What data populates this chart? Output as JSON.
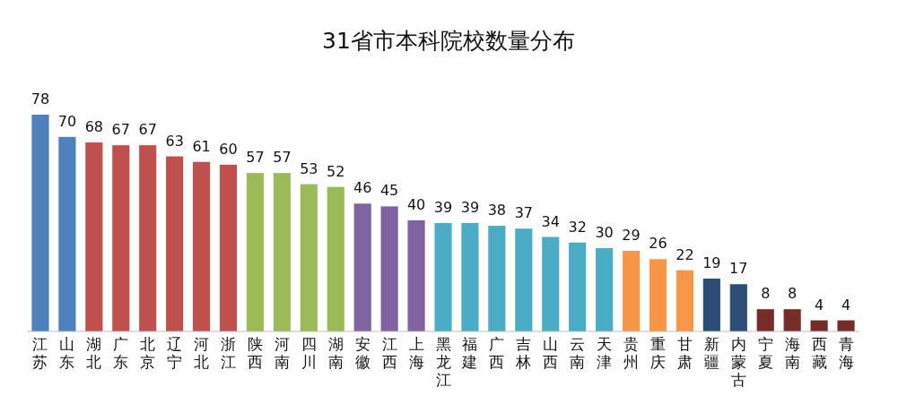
{
  "chart_data": {
    "type": "bar",
    "title": "31省市本科院校数量分布",
    "categories": [
      "江苏",
      "山东",
      "湖北",
      "广东",
      "北京",
      "辽宁",
      "河北",
      "浙江",
      "陕西",
      "河南",
      "四川",
      "湖南",
      "安徽",
      "江西",
      "上海",
      "黑龙江",
      "福建",
      "广西",
      "吉林",
      "山西",
      "云南",
      "天津",
      "贵州",
      "重庆",
      "甘肃",
      "新疆",
      "内蒙古",
      "宁夏",
      "海南",
      "西藏",
      "青海"
    ],
    "values": [
      78,
      70,
      68,
      67,
      67,
      63,
      61,
      60,
      57,
      57,
      53,
      52,
      46,
      45,
      40,
      39,
      39,
      38,
      37,
      34,
      32,
      30,
      29,
      26,
      22,
      19,
      17,
      8,
      8,
      4,
      4
    ],
    "colors": [
      "#4f81bd",
      "#4f81bd",
      "#c0504d",
      "#c0504d",
      "#c0504d",
      "#c0504d",
      "#c0504d",
      "#c0504d",
      "#9bbb59",
      "#9bbb59",
      "#9bbb59",
      "#9bbb59",
      "#8064a2",
      "#8064a2",
      "#8064a2",
      "#4bacc6",
      "#4bacc6",
      "#4bacc6",
      "#4bacc6",
      "#4bacc6",
      "#4bacc6",
      "#4bacc6",
      "#f79646",
      "#f79646",
      "#f79646",
      "#2c4d75",
      "#2c4d75",
      "#772c2a",
      "#772c2a",
      "#772c2a",
      "#772c2a"
    ],
    "data_labels": true
  }
}
